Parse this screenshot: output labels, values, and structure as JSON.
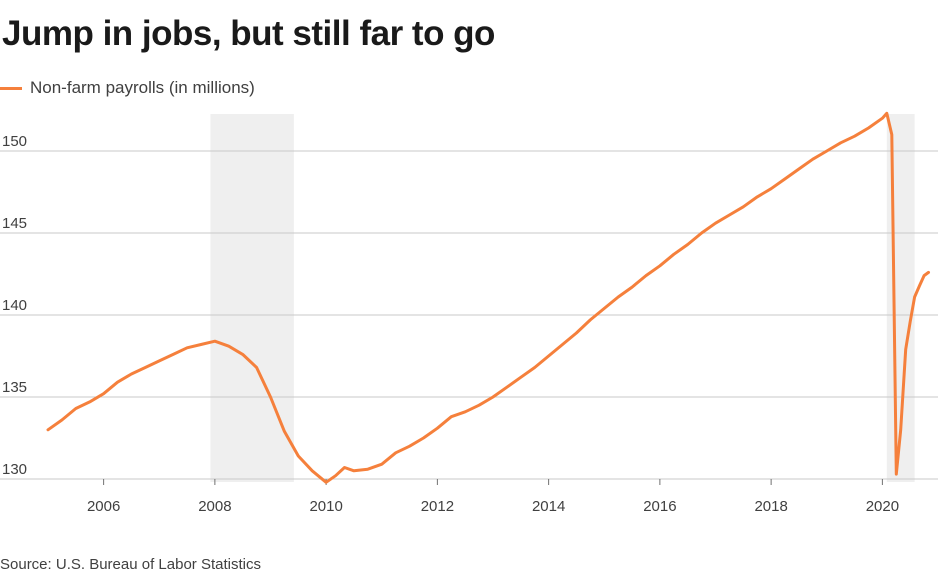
{
  "title": "Jump in jobs, but still far to go",
  "source": "Source: U.S. Bureau of Labor Statistics",
  "colors": {
    "line": "#F5803C",
    "recession": "#EFEFEF",
    "grid": "#C8C8C8",
    "axis": "#707070"
  },
  "chart_data": {
    "type": "line",
    "title": "Jump in jobs, but still far to go",
    "xlabel": "",
    "ylabel": "",
    "xlim": [
      2005.0,
      2021.0
    ],
    "ylim": [
      130,
      152.5
    ],
    "x_ticks": [
      2006,
      2008,
      2010,
      2012,
      2014,
      2016,
      2018,
      2020
    ],
    "y_ticks": [
      130,
      135,
      140,
      145,
      150
    ],
    "grid": true,
    "legend_position": "top-left",
    "shaded_periods": [
      [
        2007.92,
        2009.42
      ],
      [
        2020.08,
        2020.58
      ]
    ],
    "series": [
      {
        "name": "Non-farm payrolls (in millions)",
        "points": [
          [
            2005.0,
            133.0
          ],
          [
            2005.25,
            133.6
          ],
          [
            2005.5,
            134.3
          ],
          [
            2005.75,
            134.7
          ],
          [
            2006.0,
            135.2
          ],
          [
            2006.25,
            135.9
          ],
          [
            2006.5,
            136.4
          ],
          [
            2006.75,
            136.8
          ],
          [
            2007.0,
            137.2
          ],
          [
            2007.25,
            137.6
          ],
          [
            2007.5,
            138.0
          ],
          [
            2007.75,
            138.2
          ],
          [
            2008.0,
            138.4
          ],
          [
            2008.25,
            138.1
          ],
          [
            2008.5,
            137.6
          ],
          [
            2008.75,
            136.8
          ],
          [
            2009.0,
            135.0
          ],
          [
            2009.25,
            132.9
          ],
          [
            2009.5,
            131.4
          ],
          [
            2009.75,
            130.5
          ],
          [
            2010.0,
            129.8
          ],
          [
            2010.17,
            130.2
          ],
          [
            2010.33,
            130.7
          ],
          [
            2010.5,
            130.5
          ],
          [
            2010.75,
            130.6
          ],
          [
            2011.0,
            130.9
          ],
          [
            2011.25,
            131.6
          ],
          [
            2011.5,
            132.0
          ],
          [
            2011.75,
            132.5
          ],
          [
            2012.0,
            133.1
          ],
          [
            2012.25,
            133.8
          ],
          [
            2012.5,
            134.1
          ],
          [
            2012.75,
            134.5
          ],
          [
            2013.0,
            135.0
          ],
          [
            2013.25,
            135.6
          ],
          [
            2013.5,
            136.2
          ],
          [
            2013.75,
            136.8
          ],
          [
            2014.0,
            137.5
          ],
          [
            2014.25,
            138.2
          ],
          [
            2014.5,
            138.9
          ],
          [
            2014.75,
            139.7
          ],
          [
            2015.0,
            140.4
          ],
          [
            2015.25,
            141.1
          ],
          [
            2015.5,
            141.7
          ],
          [
            2015.75,
            142.4
          ],
          [
            2016.0,
            143.0
          ],
          [
            2016.25,
            143.7
          ],
          [
            2016.5,
            144.3
          ],
          [
            2016.75,
            145.0
          ],
          [
            2017.0,
            145.6
          ],
          [
            2017.25,
            146.1
          ],
          [
            2017.5,
            146.6
          ],
          [
            2017.75,
            147.2
          ],
          [
            2018.0,
            147.7
          ],
          [
            2018.25,
            148.3
          ],
          [
            2018.5,
            148.9
          ],
          [
            2018.75,
            149.5
          ],
          [
            2019.0,
            150.0
          ],
          [
            2019.25,
            150.5
          ],
          [
            2019.5,
            150.9
          ],
          [
            2019.75,
            151.4
          ],
          [
            2020.0,
            152.0
          ],
          [
            2020.08,
            152.3
          ],
          [
            2020.17,
            151.0
          ],
          [
            2020.25,
            130.3
          ],
          [
            2020.33,
            133.0
          ],
          [
            2020.42,
            137.9
          ],
          [
            2020.5,
            139.6
          ],
          [
            2020.58,
            141.1
          ],
          [
            2020.67,
            141.8
          ],
          [
            2020.75,
            142.4
          ],
          [
            2020.83,
            142.6
          ]
        ]
      }
    ]
  }
}
